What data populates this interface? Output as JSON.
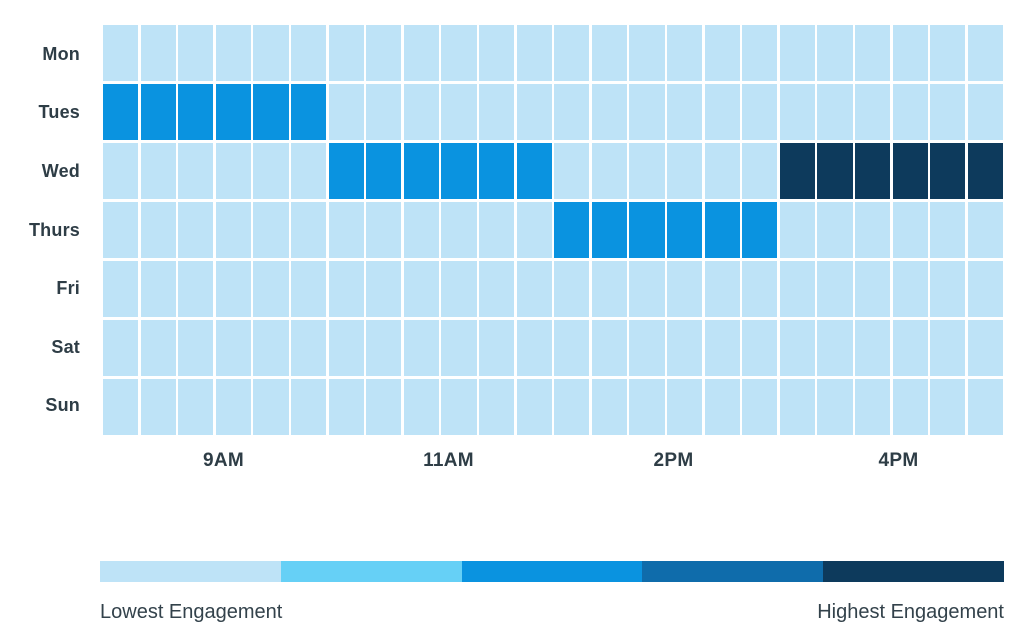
{
  "chart_data": {
    "type": "heatmap",
    "rows": [
      "Mon",
      "Tues",
      "Wed",
      "Thurs",
      "Fri",
      "Sat",
      "Sun"
    ],
    "n_columns": 24,
    "x_tick_labels": [
      "9AM",
      "11AM",
      "2PM",
      "4PM"
    ],
    "cells": [
      [
        0,
        0,
        0,
        0,
        0,
        0,
        0,
        0,
        0,
        0,
        0,
        0,
        0,
        0,
        0,
        0,
        0,
        0,
        0,
        0,
        0,
        0,
        0,
        0
      ],
      [
        2,
        2,
        2,
        2,
        2,
        2,
        0,
        0,
        0,
        0,
        0,
        0,
        0,
        0,
        0,
        0,
        0,
        0,
        0,
        0,
        0,
        0,
        0,
        0
      ],
      [
        0,
        0,
        0,
        0,
        0,
        0,
        2,
        2,
        2,
        2,
        2,
        2,
        0,
        0,
        0,
        0,
        0,
        0,
        4,
        4,
        4,
        4,
        4,
        4
      ],
      [
        0,
        0,
        0,
        0,
        0,
        0,
        0,
        0,
        0,
        0,
        0,
        0,
        2,
        2,
        2,
        2,
        2,
        2,
        0,
        0,
        0,
        0,
        0,
        0
      ],
      [
        0,
        0,
        0,
        0,
        0,
        0,
        0,
        0,
        0,
        0,
        0,
        0,
        0,
        0,
        0,
        0,
        0,
        0,
        0,
        0,
        0,
        0,
        0,
        0
      ],
      [
        0,
        0,
        0,
        0,
        0,
        0,
        0,
        0,
        0,
        0,
        0,
        0,
        0,
        0,
        0,
        0,
        0,
        0,
        0,
        0,
        0,
        0,
        0,
        0
      ],
      [
        0,
        0,
        0,
        0,
        0,
        0,
        0,
        0,
        0,
        0,
        0,
        0,
        0,
        0,
        0,
        0,
        0,
        0,
        0,
        0,
        0,
        0,
        0,
        0
      ]
    ],
    "palette": [
      "#bee3f7",
      "#66d0f6",
      "#0a93e0",
      "#0f6cab",
      "#0d3a5c"
    ],
    "value_scale": "palette index: 0 = lowest engagement, 4 = highest engagement",
    "legend": {
      "low_label": "Lowest Engagement",
      "high_label": "Highest Engagement",
      "segments": 5
    },
    "layout": {
      "grid_gap_color": "#ffffff",
      "label_color": "#2e3d46"
    }
  }
}
